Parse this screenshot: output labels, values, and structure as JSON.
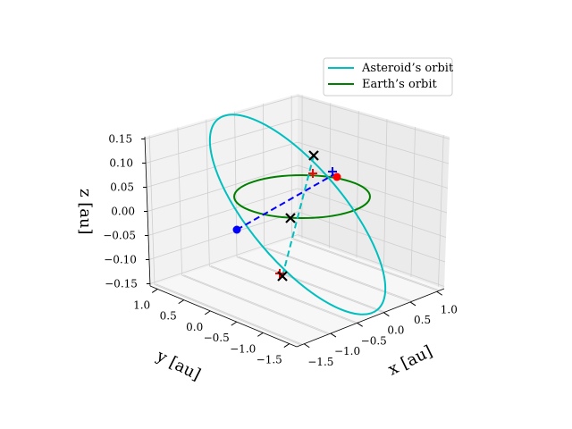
{
  "chart_data": {
    "type": "3d-line",
    "axes": {
      "x": {
        "label": "x [au]",
        "ticks": [
          "−1.5",
          "−1.0",
          "−0.5",
          "0.0",
          "0.5",
          "1.0"
        ]
      },
      "y": {
        "label": "y [au]",
        "ticks": [
          "1.0",
          "0.5",
          "0.0",
          "−0.5",
          "−1.0",
          "−1.5"
        ]
      },
      "z": {
        "label": "z [au]",
        "ticks": [
          "0.15",
          "0.10",
          "0.05",
          "0.00",
          "−0.05",
          "−0.10",
          "−0.15"
        ]
      }
    },
    "grid": true,
    "legend": {
      "placement": "top-right",
      "entries": [
        {
          "label": "Asteroid’s orbit",
          "color": "#00bfbf"
        },
        {
          "label": "Earth’s orbit",
          "color": "#008000"
        }
      ]
    },
    "series": [
      {
        "name": "Asteroid’s orbit",
        "style": "solid ellipse",
        "color": "#00bfbf"
      },
      {
        "name": "Earth’s orbit",
        "style": "solid ellipse",
        "color": "#008000"
      }
    ],
    "annotations": {
      "dashed_lines": [
        {
          "color": "#0000ff"
        },
        {
          "color": "#00bfbf"
        }
      ],
      "markers": [
        {
          "symbol": "x",
          "color": "#000000",
          "count": 3
        },
        {
          "symbol": "+",
          "color": "#ff0000",
          "count": 2
        },
        {
          "symbol": "+",
          "color": "#0000ff",
          "count": 1
        },
        {
          "symbol": "dot",
          "color": "#ff0000",
          "count": 1
        },
        {
          "symbol": "dot",
          "color": "#0000ff",
          "count": 1
        }
      ]
    }
  }
}
